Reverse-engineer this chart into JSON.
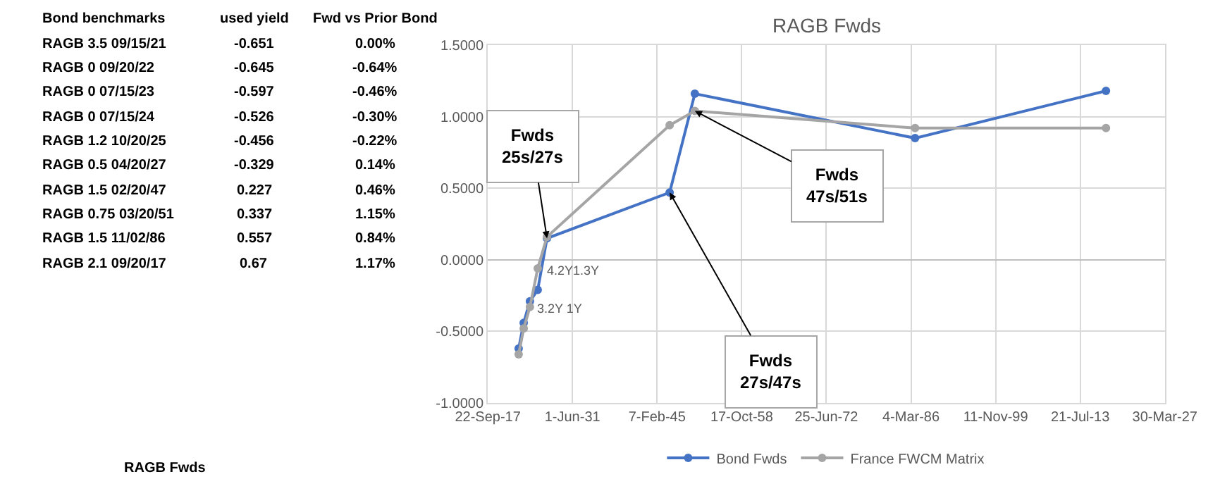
{
  "chart_data": [
    {
      "type": "other",
      "annotations": [
        "Bond benchmarks",
        "used yield",
        "Fwd vs Prior Bond",
        "RAGB 3.5 09/15/21",
        "-0.651",
        "0.00%",
        "RAGB 0 09/20/22",
        "-0.645",
        "-0.64%",
        "RAGB 0 07/15/23",
        "-0.597",
        "-0.46%",
        "RAGB 0 07/15/24",
        "-0.526",
        "-0.30%",
        "RAGB 1.2 10/20/25",
        "-0.456",
        "-0.22%",
        "RAGB 0.5 04/20/27",
        "-0.329",
        "0.14%",
        "RAGB 1.5 02/20/47",
        "0.227",
        "0.46%",
        "RAGB 0.75 03/20/51",
        "0.337",
        "1.15%",
        "RAGB 1.5 11/02/86",
        "0.557",
        "0.84%",
        "RAGB 2.1 09/20/17",
        "0.67",
        "1.17%",
        "RAGB Fwds"
      ]
    },
    {
      "type": "line",
      "title": "RAGB Fwds",
      "x": [
        "2022-09-20",
        "2023-07-15",
        "2024-07-15",
        "2025-10-20",
        "2027-04-20",
        "2047-02-20",
        "2051-03-20",
        "2086-11-02",
        "2117-09-20"
      ],
      "series": [
        {
          "name": "Bond Fwds",
          "color": "#4472c4",
          "values": [
            -0.62,
            -0.44,
            -0.29,
            -0.21,
            0.15,
            0.47,
            1.16,
            0.85,
            1.18
          ]
        },
        {
          "name": "France FWCM Matrix",
          "color": "#a5a5a5",
          "values": [
            -0.66,
            -0.48,
            -0.33,
            -0.06,
            0.16,
            0.94,
            1.04,
            0.92,
            0.92
          ]
        }
      ],
      "xlim": [
        "2017-09-22",
        "2127-03-30"
      ],
      "xticks": [
        {
          "value": "2017-09-22",
          "label": "22-Sep-17"
        },
        {
          "value": "2031-06-01",
          "label": "1-Jun-31"
        },
        {
          "value": "2045-02-07",
          "label": "7-Feb-45"
        },
        {
          "value": "2058-10-17",
          "label": "17-Oct-58"
        },
        {
          "value": "2072-06-25",
          "label": "25-Jun-72"
        },
        {
          "value": "2086-03-04",
          "label": "4-Mar-86"
        },
        {
          "value": "2099-11-11",
          "label": "11-Nov-99"
        },
        {
          "value": "2113-07-21",
          "label": "21-Jul-13"
        },
        {
          "value": "2127-03-30",
          "label": "30-Mar-27"
        }
      ],
      "ylim": [
        -1.0,
        1.5
      ],
      "yticks": [
        {
          "value": -1.0,
          "label": "-1.0000"
        },
        {
          "value": -0.5,
          "label": "-0.5000"
        },
        {
          "value": 0.0,
          "label": "0.0000"
        },
        {
          "value": 0.5,
          "label": "0.5000"
        },
        {
          "value": 1.0,
          "label": "1.0000"
        },
        {
          "value": 1.5,
          "label": "1.5000"
        }
      ],
      "annotations": [
        {
          "text": "Fwds\n25s/27s",
          "x": "2027-04-20",
          "y": 0.15
        },
        {
          "text": "Fwds\n47s/51s",
          "x": "2051-03-20",
          "y": 1.04
        },
        {
          "text": "Fwds\n27s/47s",
          "x": "2047-02-20",
          "y": 0.47
        },
        "4.2Y1.3Y",
        "3.2Y 1Y"
      ],
      "grid": true,
      "legend": "bottom",
      "marker": "circle",
      "line_style": "solid"
    }
  ]
}
